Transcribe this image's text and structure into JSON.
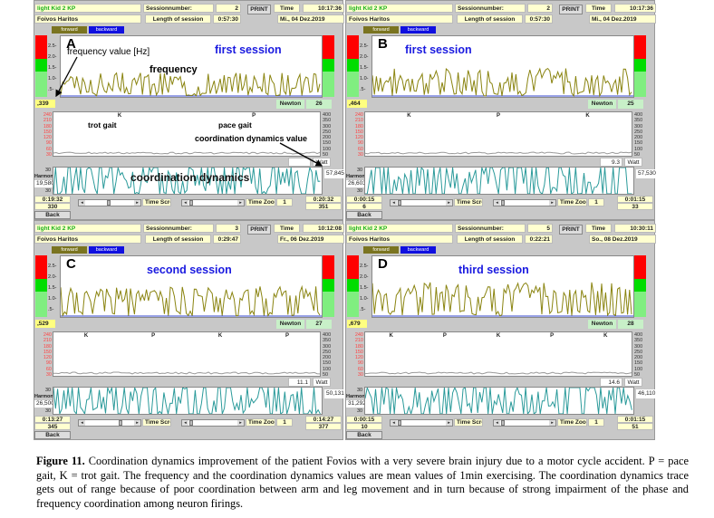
{
  "panels": [
    {
      "letter": "A",
      "session_label": "first session",
      "patient_program": "light Kid 2 KP",
      "patient_name": "Foivos  Haritos",
      "session_number_label": "Sessionnumber:",
      "session_number": "2",
      "print_label": "PRINT",
      "time_label": "Time",
      "time": "10:17:36",
      "length_label": "Length of session",
      "length": "0:57:30",
      "date": "Mi., 04 Dez.2019",
      "forward_label": "forward",
      "backward_label": "backward",
      "freq_value": ",339",
      "newton_label": "Newton",
      "newton": "26",
      "watt_value": "",
      "watt_label": "Watt",
      "harmonic_label": "Harmonic",
      "harmonic_value": "19,580",
      "coord_value": "57,845",
      "start_time": "0:19:32",
      "start_count": "330",
      "end_time": "0:20:32",
      "end_count": "351",
      "time_scroll_label": "Time Scroll",
      "time_zoom_label": "Time Zoom",
      "zoom_value": "1",
      "back_label": "Back",
      "gait": [
        "K",
        "P"
      ],
      "scroll_pos": 0.45,
      "seed": 3,
      "freq_base": 0.3
    },
    {
      "letter": "B",
      "session_label": "first session",
      "patient_program": "light Kid 2 KP",
      "patient_name": "Foivos  Haritos",
      "session_number_label": "Sessionnumber:",
      "session_number": "2",
      "print_label": "PRINT",
      "time_label": "Time",
      "time": "10:17:36",
      "length_label": "Length of session",
      "length": "0:57:30",
      "date": "Mi., 04 Dez.2019",
      "forward_label": "forward",
      "backward_label": "backward",
      "freq_value": ",464",
      "newton_label": "Newton",
      "newton": "25",
      "watt_value": "9.3",
      "watt_label": "Watt",
      "harmonic_label": "Harmonic",
      "harmonic_value": "26,603",
      "coord_value": "57,530",
      "start_time": "0:00:15",
      "start_count": "6",
      "end_time": "0:01:15",
      "end_count": "33",
      "time_scroll_label": "Time Scroll",
      "time_zoom_label": "Time Zoom",
      "zoom_value": "1",
      "back_label": "Back",
      "gait": [
        "K",
        "P",
        "K"
      ],
      "scroll_pos": 0.0,
      "seed": 7,
      "freq_base": 0.45
    },
    {
      "letter": "C",
      "session_label": "second session",
      "patient_program": "light Kid 2 KP",
      "patient_name": "Foivos  Haritos",
      "session_number_label": "Sessionnumber:",
      "session_number": "3",
      "print_label": "PRINT",
      "time_label": "Time",
      "time": "10:12:08",
      "length_label": "Length of session",
      "length": "0:29:47",
      "date": "Fr., 06 Dez.2019",
      "forward_label": "forward",
      "backward_label": "backward",
      "freq_value": ",529",
      "newton_label": "Newton",
      "newton": "27",
      "watt_value": "11.1",
      "watt_label": "Watt",
      "harmonic_label": "Harmonic",
      "harmonic_value": "26,500",
      "coord_value": "50,131",
      "start_time": "0:13:27",
      "start_count": "345",
      "end_time": "0:14:27",
      "end_count": "377",
      "time_scroll_label": "Time Scroll",
      "time_zoom_label": "Time Zoom",
      "zoom_value": "1",
      "back_label": "Back",
      "gait": [
        "K",
        "P",
        "K",
        "P"
      ],
      "scroll_pos": 0.72,
      "seed": 11,
      "freq_base": 0.55
    },
    {
      "letter": "D",
      "session_label": "third session",
      "patient_program": "light Kid 2 KP",
      "patient_name": "Foivos  Haritos",
      "session_number_label": "Sessionnumber:",
      "session_number": "5",
      "print_label": "PRINT",
      "time_label": "Time",
      "time": "10:30:11",
      "length_label": "Length of session",
      "length": "0:22:21",
      "date": "So., 08 Dez.2019",
      "forward_label": "forward",
      "backward_label": "backward",
      "freq_value": ",679",
      "newton_label": "Newton",
      "newton": "28",
      "watt_value": "14.6",
      "watt_label": "Watt",
      "harmonic_label": "Harmonic",
      "harmonic_value": "31,292",
      "coord_value": "46,110",
      "start_time": "0:00:15",
      "start_count": "10",
      "end_time": "0:01:15",
      "end_count": "51",
      "time_scroll_label": "Time Scroll",
      "time_zoom_label": "Time Zoom",
      "zoom_value": "1",
      "back_label": "Back",
      "gait": [
        "K",
        "P",
        "K",
        "P",
        "K"
      ],
      "scroll_pos": 0.0,
      "seed": 17,
      "freq_base": 0.7
    }
  ],
  "freq_axis": [
    "2.5-",
    "2.0-",
    "1.5-",
    "1.0-",
    ".5-"
  ],
  "watt_axis_left": [
    "240",
    "210",
    "180",
    "150",
    "120",
    "90",
    "60",
    "30"
  ],
  "watt_axis_right": [
    "400",
    "350",
    "300",
    "250",
    "200",
    "150",
    "100",
    "50"
  ],
  "harmonic_axis": [
    "30",
    "30"
  ],
  "annotations": {
    "freq_value": "frequency value [Hz]",
    "frequency": "frequency",
    "trot": "trot gait",
    "pace": "pace gait",
    "coord_value": "coordination dynamics value",
    "coord": "coordination dynamics"
  },
  "colors": {
    "freq_line": "#8a8410",
    "harmonic_line": "#2a9a9a",
    "forward": "#7a7420",
    "backward": "#1010e0",
    "session_label": "#1a1ae0"
  },
  "caption": {
    "label": "Figure 11.",
    "text": " Coordination dynamics improvement of the patient Fovios with a very severe brain injury due to a motor cycle accident. P = pace gait, K = trot gait. The frequency and the coordination dynamics values are mean values of 1min exercising. The coordination dynamics trace gets out of range because of poor coordination between arm and leg movement and in turn because of strong impairment of the phase and frequency coordination among neuron firings."
  }
}
